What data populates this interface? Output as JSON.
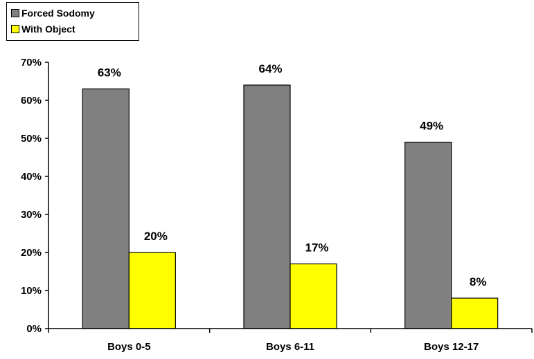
{
  "chart_data": {
    "type": "bar",
    "categories": [
      "Boys 0-5",
      "Boys 6-11",
      "Boys 12-17"
    ],
    "series": [
      {
        "name": "Forced Sodomy",
        "values": [
          63,
          64,
          49
        ],
        "labels": [
          "63%",
          "64%",
          "49%"
        ],
        "color": "#808080"
      },
      {
        "name": "With Object",
        "values": [
          20,
          17,
          8
        ],
        "labels": [
          "20%",
          "17%",
          "8%"
        ],
        "color": "#ffff00"
      }
    ],
    "yticks": [
      "0%",
      "10%",
      "20%",
      "30%",
      "40%",
      "50%",
      "60%",
      "70%"
    ],
    "ylim": [
      0,
      70
    ],
    "unit": "%",
    "grid": false,
    "legend_position": "top-left"
  }
}
